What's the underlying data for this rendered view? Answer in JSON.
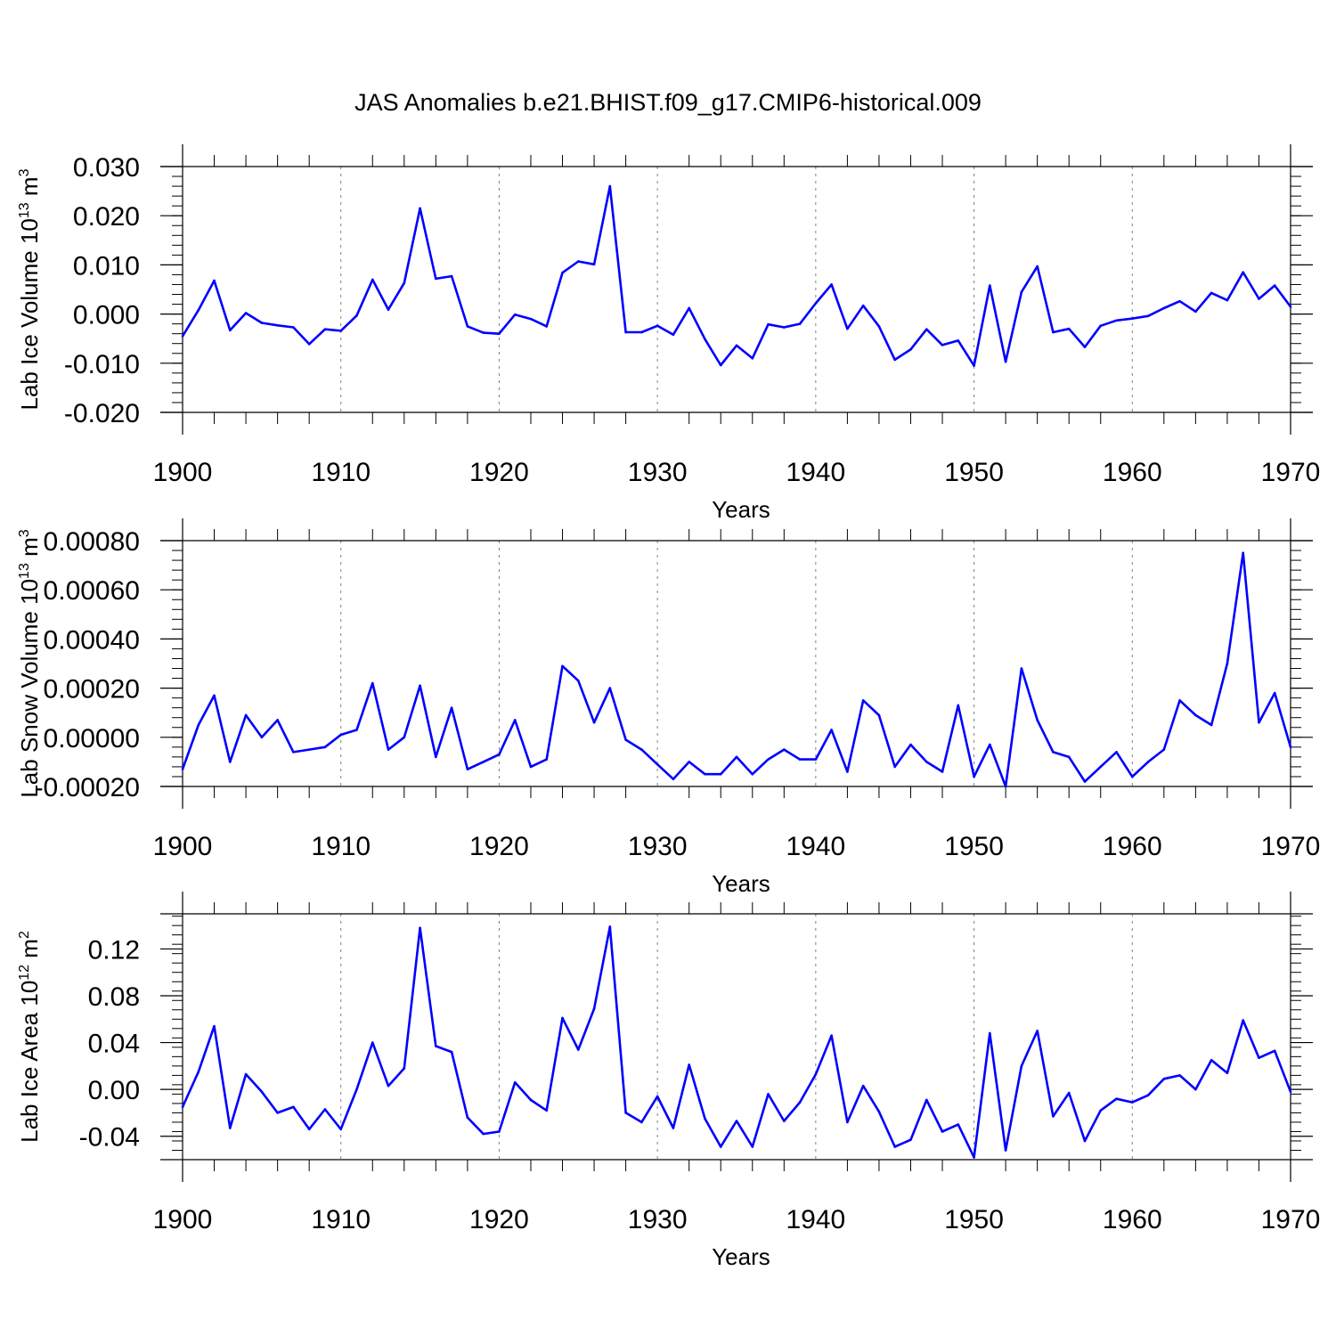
{
  "title": "JAS Anomalies b.e21.BHIST.f09_g17.CMIP6-historical.009",
  "colors": {
    "series": "#0000ff",
    "axes": "#000000",
    "grid": "#808080"
  },
  "chart_data": [
    {
      "type": "line",
      "name": "ice-volume",
      "title": "JAS Anomalies b.e21.BHIST.f09_g17.CMIP6-historical.009",
      "xlabel": "Years",
      "ylabel": "Lab Ice Volume 10",
      "ylabel_exp": "13",
      "ylabel_unit": " m",
      "ylabel_unit_exp": "3",
      "xlim": [
        1900,
        1970
      ],
      "ylim": [
        -0.02,
        0.03
      ],
      "xticks": [
        1900,
        1910,
        1920,
        1930,
        1940,
        1950,
        1960,
        1970
      ],
      "xtick_labels": [
        "1900",
        "1910",
        "1920",
        "1930",
        "1940",
        "1950",
        "1960",
        "1970"
      ],
      "yticks": [
        -0.02,
        -0.01,
        0.0,
        0.01,
        0.02,
        0.03
      ],
      "ytick_labels": [
        "-0.020",
        "-0.010",
        "0.000",
        "0.010",
        "0.020",
        "0.030"
      ],
      "x_start": 1900,
      "values": [
        -0.0045,
        0.0008,
        0.0068,
        -0.0033,
        0.0002,
        -0.0018,
        -0.0023,
        -0.0027,
        -0.0061,
        -0.0031,
        -0.0034,
        -0.0003,
        0.007,
        0.0009,
        0.0063,
        0.0215,
        0.0072,
        0.0077,
        -0.0025,
        -0.0038,
        -0.004,
        -0.0001,
        -0.001,
        -0.0025,
        0.0084,
        0.0107,
        0.0101,
        0.026,
        -0.0037,
        -0.0037,
        -0.0024,
        -0.0042,
        0.0012,
        -0.0051,
        -0.0104,
        -0.0064,
        -0.009,
        -0.0021,
        -0.0027,
        -0.002,
        0.0022,
        0.006,
        -0.003,
        0.0017,
        -0.0025,
        -0.0093,
        -0.0072,
        -0.0031,
        -0.0063,
        -0.0054,
        -0.0105,
        0.0058,
        -0.0097,
        0.0045,
        0.0097,
        -0.0037,
        -0.003,
        -0.0067,
        -0.0024,
        -0.0013,
        -0.0009,
        -0.0004,
        0.0012,
        0.0026,
        0.0005,
        0.0043,
        0.0028,
        0.0085,
        0.0031,
        0.0058,
        0.0015
      ]
    },
    {
      "type": "line",
      "name": "snow-volume",
      "xlabel": "Years",
      "ylabel": "Lab Snow Volume 10",
      "ylabel_exp": "13",
      "ylabel_unit": " m",
      "ylabel_unit_exp": "3",
      "xlim": [
        1900,
        1970
      ],
      "ylim": [
        -0.0002,
        0.0008
      ],
      "xticks": [
        1900,
        1910,
        1920,
        1930,
        1940,
        1950,
        1960,
        1970
      ],
      "xtick_labels": [
        "1900",
        "1910",
        "1920",
        "1930",
        "1940",
        "1950",
        "1960",
        "1970"
      ],
      "yticks": [
        -0.0002,
        0.0,
        0.0002,
        0.0004,
        0.0006,
        0.0008
      ],
      "ytick_labels": [
        "-0.00020",
        "0.00000",
        "0.00020",
        "0.00040",
        "0.00060",
        "0.00080"
      ],
      "x_start": 1900,
      "values": [
        -0.00013,
        5e-05,
        0.00017,
        -0.0001,
        9e-05,
        0.0,
        7e-05,
        -6e-05,
        -5e-05,
        -4e-05,
        1e-05,
        3e-05,
        0.00022,
        -5e-05,
        0.0,
        0.00021,
        -8e-05,
        0.00012,
        -0.00013,
        -0.0001,
        -7e-05,
        7e-05,
        -0.00012,
        -9e-05,
        0.00029,
        0.00023,
        6e-05,
        0.0002,
        -1e-05,
        -5e-05,
        -0.00011,
        -0.00017,
        -0.0001,
        -0.00015,
        -0.00015,
        -8e-05,
        -0.00015,
        -9e-05,
        -5e-05,
        -9e-05,
        -9e-05,
        3e-05,
        -0.00014,
        0.00015,
        9e-05,
        -0.00012,
        -3e-05,
        -0.0001,
        -0.00014,
        0.00013,
        -0.00016,
        -3e-05,
        -0.0002,
        0.00028,
        7e-05,
        -6e-05,
        -8e-05,
        -0.00018,
        -0.00012,
        -6e-05,
        -0.00016,
        -0.0001,
        -5e-05,
        0.00015,
        9e-05,
        5e-05,
        0.0003,
        0.00075,
        6e-05,
        0.00018,
        -4e-05
      ]
    },
    {
      "type": "line",
      "name": "ice-area",
      "xlabel": "Years",
      "ylabel": "Lab Ice Area 10",
      "ylabel_exp": "12",
      "ylabel_unit": " m",
      "ylabel_unit_exp": "2",
      "xlim": [
        1900,
        1970
      ],
      "ylim": [
        -0.06,
        0.15
      ],
      "xticks": [
        1900,
        1910,
        1920,
        1930,
        1940,
        1950,
        1960,
        1970
      ],
      "xtick_labels": [
        "1900",
        "1910",
        "1920",
        "1930",
        "1940",
        "1950",
        "1960",
        "1970"
      ],
      "yticks": [
        -0.04,
        0.0,
        0.04,
        0.08,
        0.12
      ],
      "ytick_labels": [
        "-0.04",
        "0.00",
        "0.04",
        "0.08",
        "0.12"
      ],
      "x_start": 1900,
      "values": [
        -0.015,
        0.015,
        0.054,
        -0.033,
        0.013,
        -0.002,
        -0.02,
        -0.015,
        -0.034,
        -0.017,
        -0.034,
        0.0,
        0.04,
        0.003,
        0.018,
        0.138,
        0.037,
        0.032,
        -0.024,
        -0.038,
        -0.036,
        0.006,
        -0.009,
        -0.018,
        0.061,
        0.034,
        0.069,
        0.139,
        -0.02,
        -0.028,
        -0.006,
        -0.033,
        0.021,
        -0.025,
        -0.049,
        -0.027,
        -0.049,
        -0.004,
        -0.027,
        -0.011,
        0.013,
        0.046,
        -0.028,
        0.003,
        -0.019,
        -0.049,
        -0.043,
        -0.009,
        -0.036,
        -0.03,
        -0.058,
        0.048,
        -0.052,
        0.02,
        0.05,
        -0.023,
        -0.003,
        -0.044,
        -0.018,
        -0.008,
        -0.011,
        -0.005,
        0.009,
        0.012,
        0.0,
        0.025,
        0.014,
        0.059,
        0.027,
        0.033,
        -0.002
      ]
    }
  ]
}
